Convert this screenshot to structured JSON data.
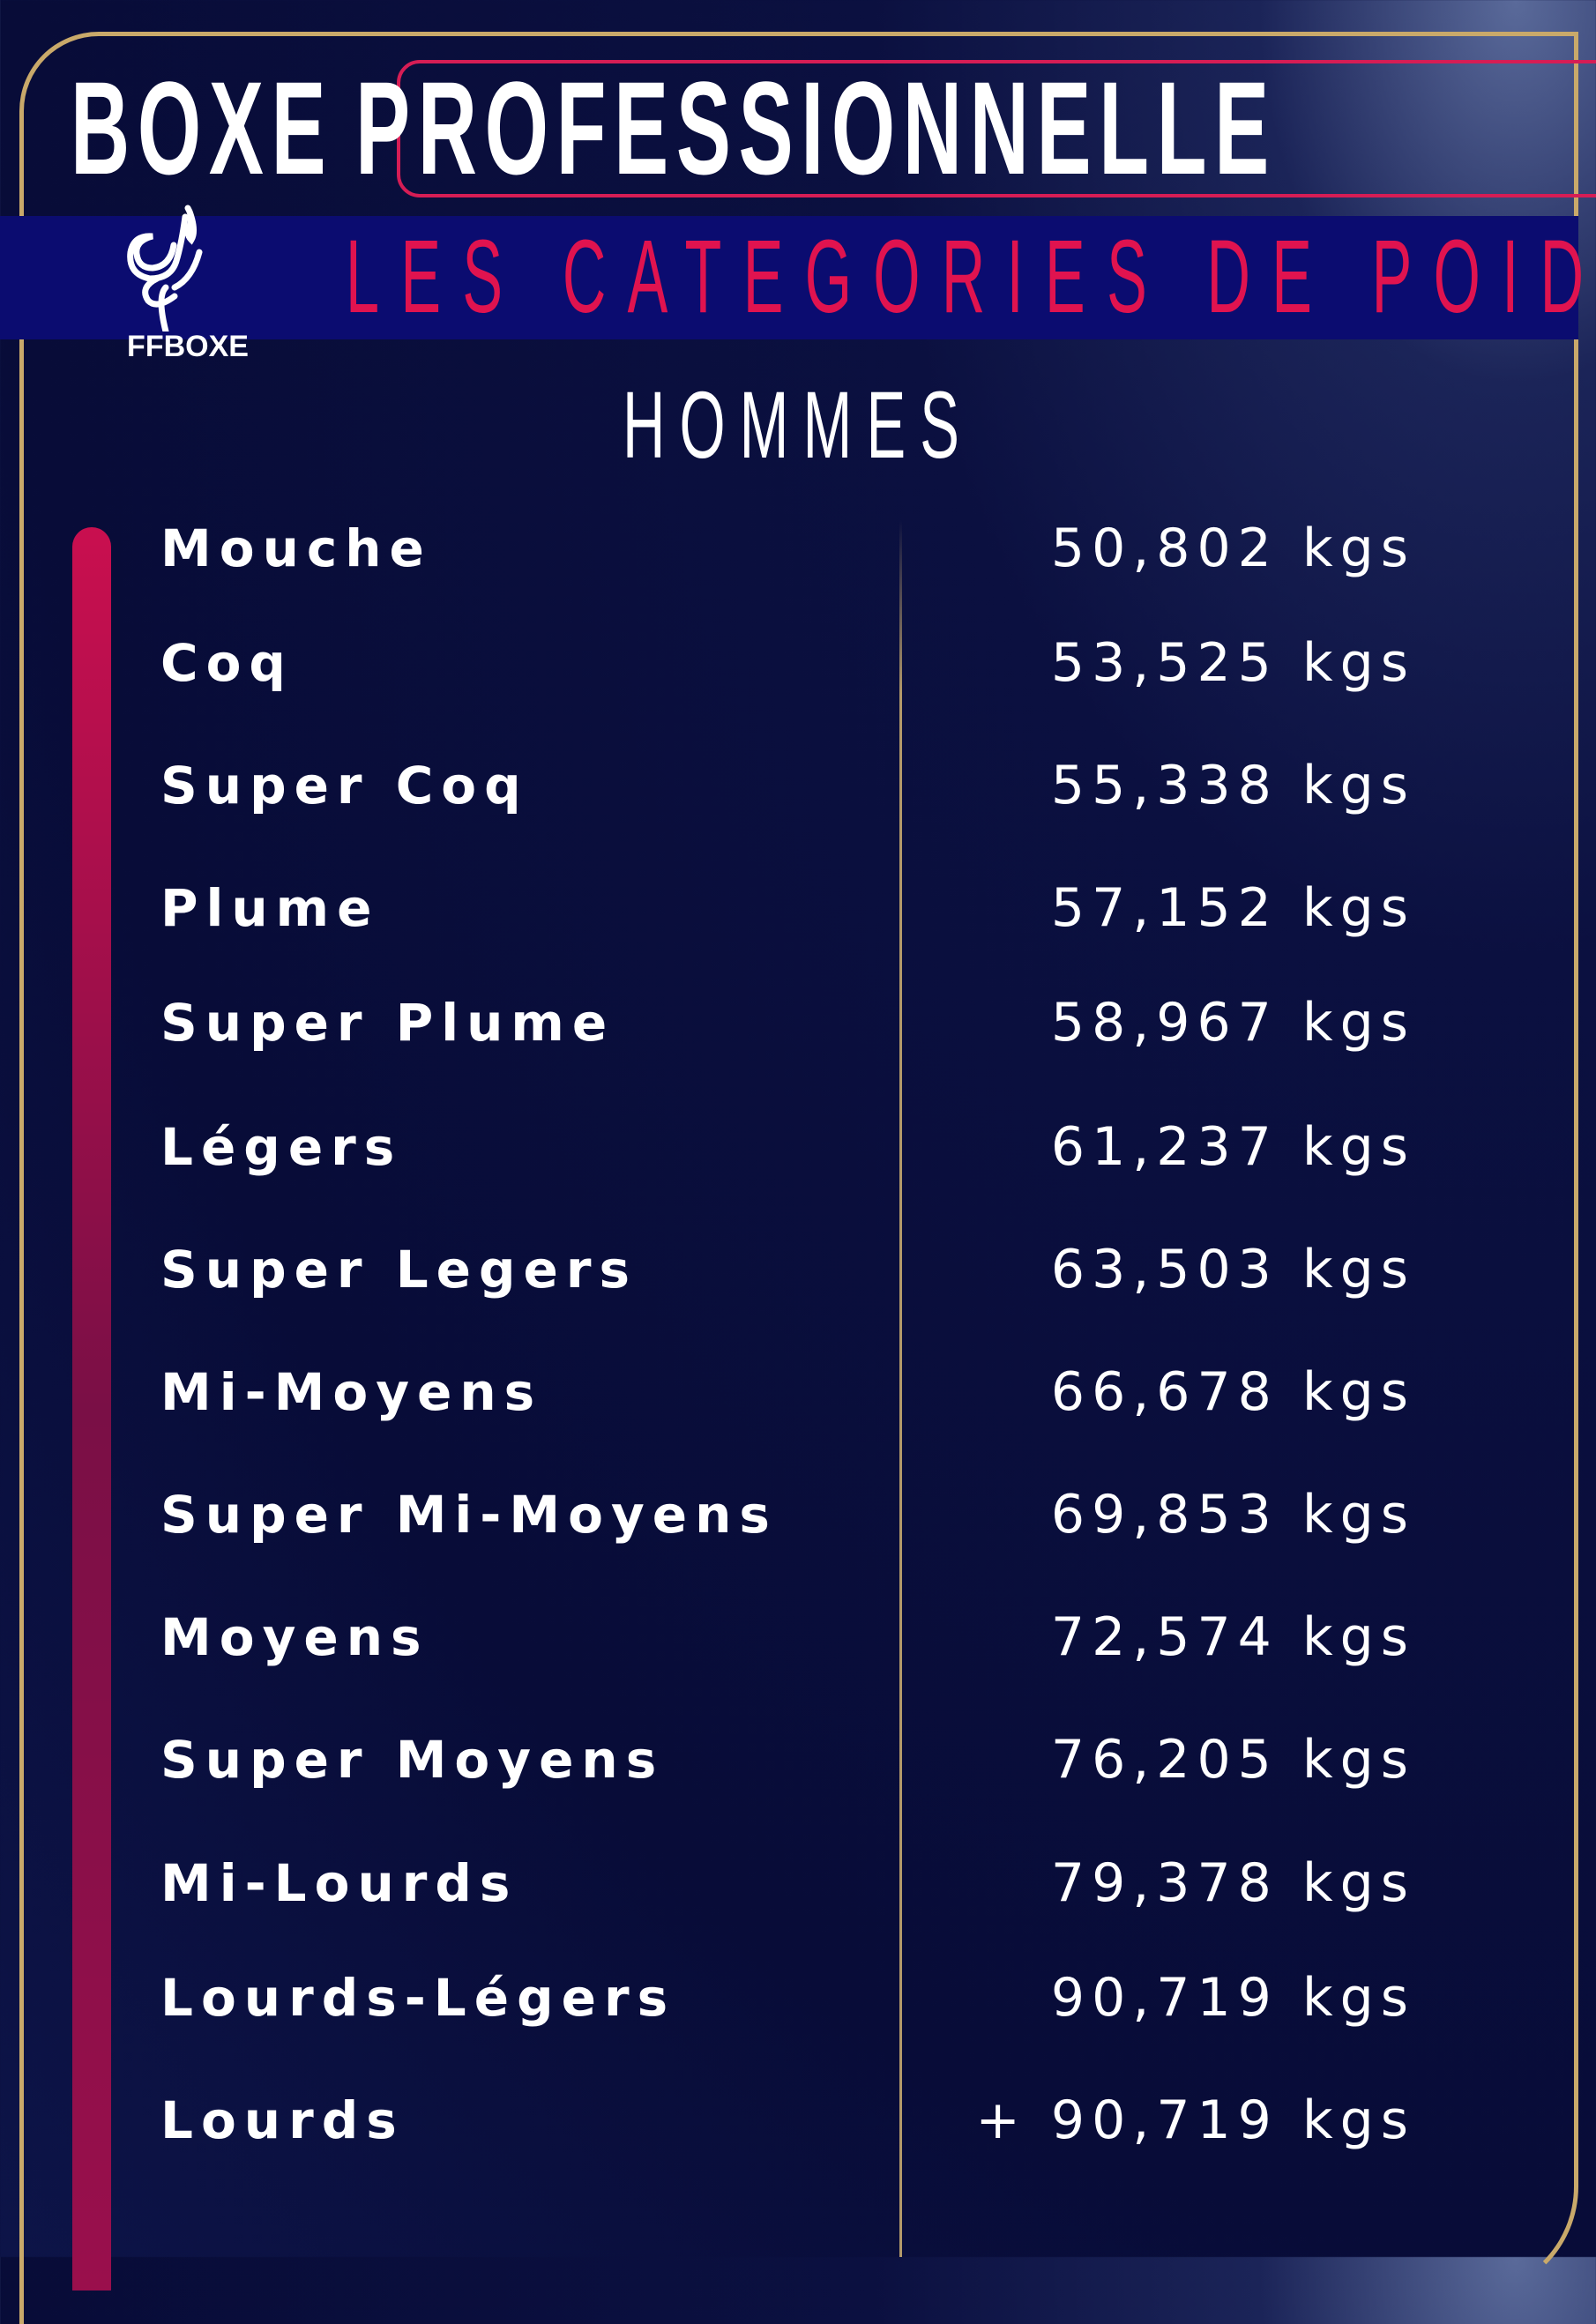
{
  "header": {
    "title_part1": "BOXE",
    "title_part2": "PROFESSIONNELLE",
    "subtitle": "LES CATEGORIES DE POIDS",
    "logo_text": "FFBOXE"
  },
  "section": {
    "title": "HOMMES"
  },
  "colors": {
    "accent": "#e0134f",
    "gold": "#c9a96a",
    "band": "#0b0c70",
    "background": "#080c38"
  },
  "categories": [
    {
      "name": "Mouche",
      "weight": "50,802 kgs"
    },
    {
      "name": "Coq",
      "weight": "53,525 kgs"
    },
    {
      "name": "Super Coq",
      "weight": "55,338 kgs"
    },
    {
      "name": "Plume",
      "weight": "57,152 kgs"
    },
    {
      "name": "Super Plume",
      "weight": "58,967 kgs"
    },
    {
      "name": "Légers",
      "weight": "61,237 kgs"
    },
    {
      "name": "Super Legers",
      "weight": "63,503 kgs"
    },
    {
      "name": "Mi-Moyens",
      "weight": "66,678 kgs"
    },
    {
      "name": "Super Mi-Moyens",
      "weight": "69,853 kgs"
    },
    {
      "name": "Moyens",
      "weight": "72,574 kgs"
    },
    {
      "name": "Super Moyens",
      "weight": "76,205 kgs"
    },
    {
      "name": "Mi-Lourds",
      "weight": "79,378 kgs"
    },
    {
      "name": "Lourds-Légers",
      "weight": "90,719 kgs"
    },
    {
      "name": "Lourds",
      "weight": "+ 90,719 kgs"
    }
  ]
}
